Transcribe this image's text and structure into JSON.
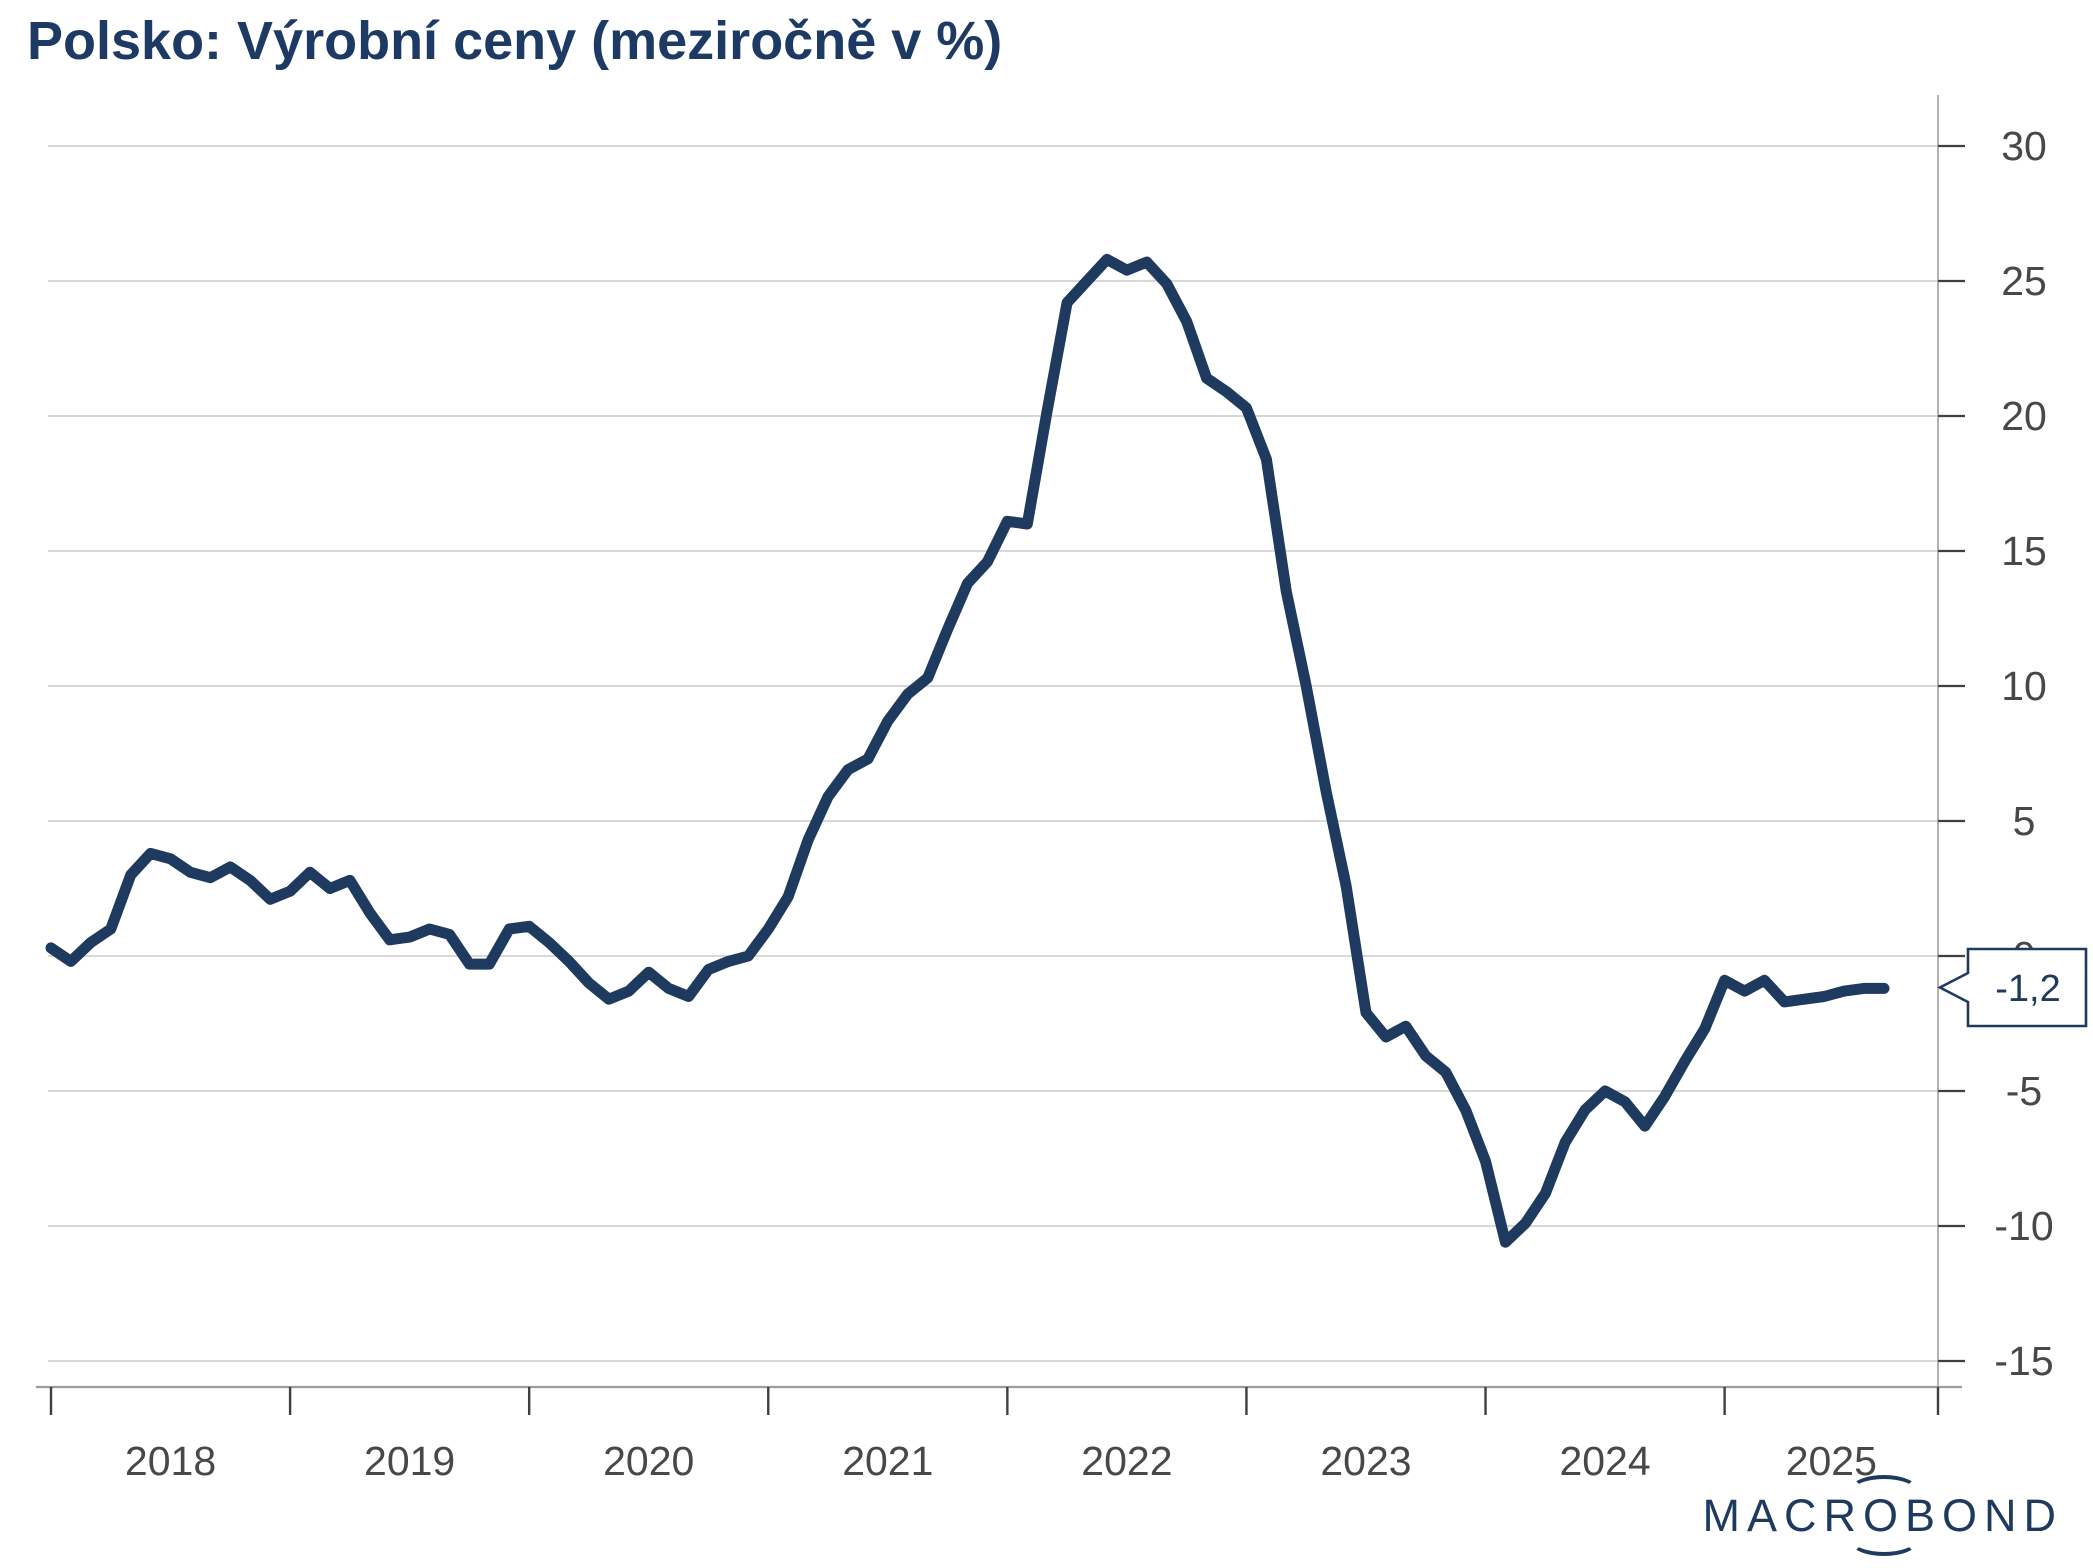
{
  "title": "Polsko: Výrobní ceny (meziročně v %)",
  "callout": {
    "label": "-1,2"
  },
  "logo": {
    "pre": "MACR",
    "o": "O",
    "post": "BOND"
  },
  "axes": {
    "y_ticks": [
      "30",
      "25",
      "20",
      "15",
      "10",
      "5",
      "0",
      "-5",
      "-10",
      "-15"
    ],
    "x_ticks": [
      "2018",
      "2019",
      "2020",
      "2021",
      "2022",
      "2023",
      "2024",
      "2025"
    ]
  },
  "colors": {
    "line": "#1e3a5f",
    "title": "#1d3a64",
    "grid": "#cccccc",
    "axis_line": "#9b9b9b",
    "right_axis_line": "#b3b3b3",
    "tick": "#3f3f3f",
    "label": "#484848",
    "callout_border": "#1e3a5f",
    "callout_text": "#1e3a5f"
  },
  "chart_data": {
    "type": "line",
    "title": "Polsko: Výrobní ceny (meziročně v %)",
    "series_name": "Výrobní ceny, meziročně v %",
    "frequency": "monthly",
    "start": "2018-01",
    "end": "2025-09",
    "ylim": [
      -15,
      30
    ],
    "y_tick_step": 5,
    "grid": "horizontal",
    "legend": "none",
    "last_value_label": "-1,2",
    "values": [
      0.3,
      -0.2,
      0.5,
      1.0,
      3.0,
      3.8,
      3.6,
      3.1,
      2.9,
      3.3,
      2.8,
      2.1,
      2.4,
      3.1,
      2.5,
      2.8,
      1.6,
      0.6,
      0.7,
      1.0,
      0.8,
      -0.3,
      -0.3,
      1.0,
      1.1,
      0.5,
      -0.2,
      -1.0,
      -1.6,
      -1.3,
      -0.6,
      -1.2,
      -1.5,
      -0.5,
      -0.2,
      0.0,
      1.0,
      2.2,
      4.3,
      5.9,
      6.9,
      7.3,
      8.7,
      9.7,
      10.3,
      12.1,
      13.8,
      14.6,
      16.1,
      16.0,
      20.2,
      24.2,
      25.0,
      25.8,
      25.4,
      25.7,
      24.9,
      23.5,
      21.4,
      20.9,
      20.3,
      18.4,
      13.5,
      10.0,
      6.1,
      2.6,
      -2.1,
      -3.0,
      -2.6,
      -3.7,
      -4.3,
      -5.7,
      -7.6,
      -10.6,
      -9.9,
      -8.8,
      -6.9,
      -5.7,
      -5.0,
      -5.4,
      -6.3,
      -5.2,
      -3.9,
      -2.7,
      -0.9,
      -1.3,
      -0.9,
      -1.7,
      -1.6,
      -1.5,
      -1.3,
      -1.2,
      -1.2
    ]
  }
}
